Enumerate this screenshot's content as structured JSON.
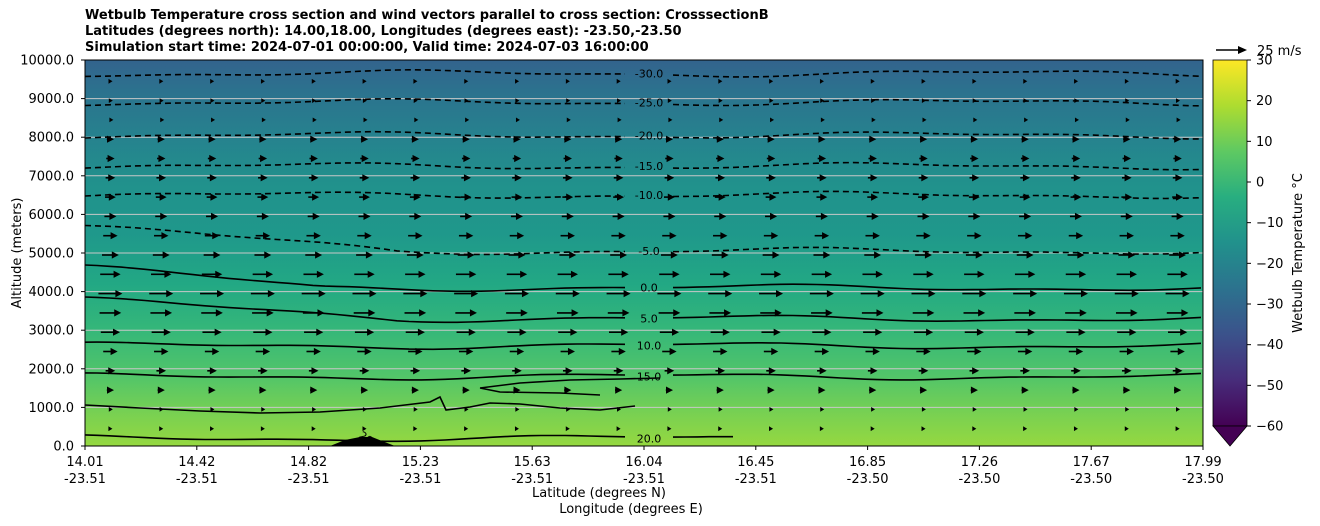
{
  "chart_data": {
    "type": "heatmap",
    "title_lines": [
      "Wetbulb Temperature cross section and wind vectors parallel to cross section: CrosssectionB",
      "Latitudes (degrees north): 14.00,18.00, Longitudes (degrees east): -23.50,-23.50",
      "Simulation start time: 2024-07-01 00:00:00, Valid time: 2024-07-03 16:00:00"
    ],
    "ylabel": "Altitude (meters)",
    "xlabel_lat": "Latitude (degrees N)",
    "xlabel_lon": "Longitude (degrees E)",
    "ylim": [
      0,
      10000
    ],
    "y_ticks": [
      "0.0",
      "1000.0",
      "2000.0",
      "3000.0",
      "4000.0",
      "5000.0",
      "6000.0",
      "7000.0",
      "8000.0",
      "9000.0",
      "10000.0"
    ],
    "x_ticks_lat": [
      "14.01",
      "14.42",
      "14.82",
      "15.23",
      "15.63",
      "16.04",
      "16.45",
      "16.85",
      "17.26",
      "17.67",
      "17.99"
    ],
    "x_ticks_lon": [
      "-23.51",
      "-23.51",
      "-23.51",
      "-23.51",
      "-23.51",
      "-23.51",
      "-23.51",
      "-23.50",
      "-23.50",
      "-23.50",
      "-23.50"
    ],
    "grid": "horizontal",
    "contour_levels": [
      {
        "label": "-30.0",
        "altitude_m": 9650,
        "dashed": true
      },
      {
        "label": "-25.0",
        "altitude_m": 8900,
        "dashed": true
      },
      {
        "label": "-20.0",
        "altitude_m": 8050,
        "dashed": true
      },
      {
        "label": "-15.0",
        "altitude_m": 7250,
        "dashed": true
      },
      {
        "label": "-10.0",
        "altitude_m": 6500,
        "dashed": true
      },
      {
        "label": "-5.0",
        "altitude_m": 5050,
        "dashed": true
      },
      {
        "label": "0.0",
        "altitude_m": 4100,
        "dashed": false
      },
      {
        "label": "5.0",
        "altitude_m": 3300,
        "dashed": false
      },
      {
        "label": "10.0",
        "altitude_m": 2600,
        "dashed": false
      },
      {
        "label": "15.0",
        "altitude_m": 1800,
        "dashed": false
      },
      {
        "label": "20.0",
        "altitude_m": 200,
        "dashed": false
      }
    ],
    "extra_contour_label": "20",
    "colorbar": {
      "label": "Wetbulb Temperature °C",
      "min": -60,
      "max": 30,
      "ticks": [
        "30",
        "20",
        "10",
        "0",
        "−10",
        "−20",
        "−30",
        "−40",
        "−50",
        "−60"
      ],
      "colormap": "viridis"
    },
    "wind_reference": {
      "label": "25 m/s",
      "speed_ms": 25
    },
    "wind_field": {
      "direction": "rightward (parallel to cross section, northward)",
      "max_speed_altitude_m": 4000,
      "approx_speed_ms_by_altitude": [
        {
          "altitude_m": 0,
          "speed": 2
        },
        {
          "altitude_m": 1000,
          "speed": 4
        },
        {
          "altitude_m": 2000,
          "speed": 8
        },
        {
          "altitude_m": 3000,
          "speed": 16
        },
        {
          "altitude_m": 4000,
          "speed": 20
        },
        {
          "altitude_m": 5000,
          "speed": 14
        },
        {
          "altitude_m": 6000,
          "speed": 10
        },
        {
          "altitude_m": 7000,
          "speed": 8
        },
        {
          "altitude_m": 8000,
          "speed": 6
        },
        {
          "altitude_m": 9000,
          "speed": 4
        },
        {
          "altitude_m": 10000,
          "speed": 3
        }
      ]
    },
    "terrain": {
      "peak_lat_position": "near 14.9",
      "peak_altitude_m": 200
    }
  }
}
